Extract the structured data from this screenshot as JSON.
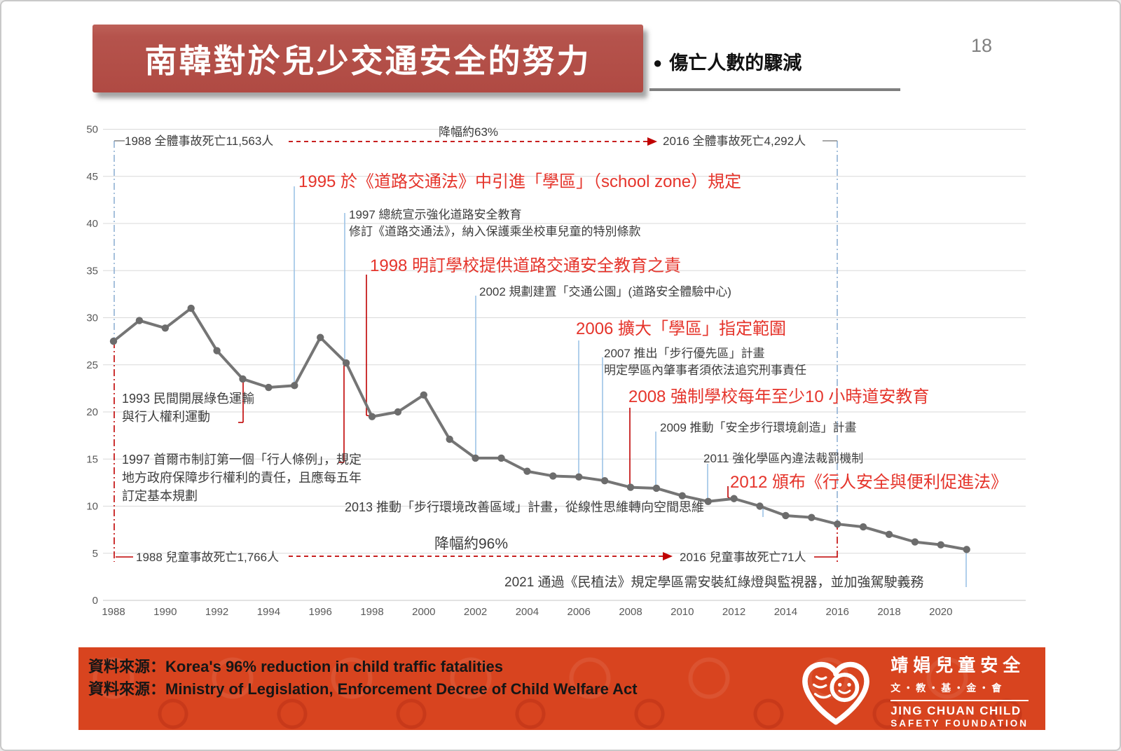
{
  "page": {
    "number": "18"
  },
  "header": {
    "title": "南韓對於兒少交通安全的努力",
    "bullet": "●",
    "subtitle": "傷亡人數的驟減"
  },
  "colors": {
    "banner_red": "#b5534c",
    "annotation_red": "#e5342b",
    "dash_red": "#c00000",
    "leader_blue": "#9dc3e6",
    "dashdot_bluegray": "#8fb0d4",
    "line_gray": "#757575",
    "grid_gray": "#d9d9d9",
    "footer_red": "#d8441f"
  },
  "chart_data": {
    "type": "line",
    "title": "",
    "xlabel": "",
    "ylabel": "",
    "x": [
      1988,
      1989,
      1990,
      1991,
      1992,
      1993,
      1994,
      1995,
      1996,
      1997,
      1998,
      1999,
      2000,
      2001,
      2002,
      2003,
      2004,
      2005,
      2006,
      2007,
      2008,
      2009,
      2010,
      2011,
      2012,
      2013,
      2014,
      2015,
      2016,
      2017,
      2018,
      2019,
      2020,
      2021
    ],
    "values": [
      27.5,
      29.7,
      28.9,
      31.0,
      26.5,
      23.5,
      22.6,
      22.8,
      27.9,
      25.2,
      19.5,
      20.0,
      21.8,
      17.1,
      15.1,
      15.1,
      13.7,
      13.2,
      13.1,
      12.7,
      12.0,
      11.9,
      11.1,
      10.5,
      10.8,
      10.0,
      9.0,
      8.8,
      8.1,
      7.8,
      7.0,
      6.2,
      5.9,
      5.4
    ],
    "ylim": [
      0,
      50
    ],
    "ytick_step": 5,
    "xticks": [
      1988,
      1990,
      1992,
      1994,
      1996,
      1998,
      2000,
      2002,
      2004,
      2006,
      2008,
      2010,
      2012,
      2014,
      2016,
      2018,
      2020
    ],
    "grid": true,
    "legend": "none",
    "annotations": {
      "total_1988": {
        "text": "1988 全體事故死亡11,563人",
        "color": "black"
      },
      "drop_total": {
        "text": "降幅約63%",
        "color": "black"
      },
      "total_2016": {
        "text": "2016 全體事故死亡4,292人",
        "color": "black"
      },
      "y1995": {
        "text": "1995 於《道路交通法》中引進「學區」（school zone）規定",
        "color": "red"
      },
      "y1997_a": {
        "text": "1997 總統宣示強化道路安全教育",
        "color": "black"
      },
      "y1997_b": {
        "text": "修訂《道路交通法》，納入保護乘坐校車兒童的特別條款",
        "color": "black"
      },
      "y1998": {
        "text": "1998 明訂學校提供道路交通安全教育之責",
        "color": "red"
      },
      "y2002": {
        "text": "2002 規劃建置「交通公園」(道路安全體驗中心)",
        "color": "black"
      },
      "y2006": {
        "text": "2006 擴大「學區」指定範圍",
        "color": "red"
      },
      "y2007_a": {
        "text": "2007 推出「步行優先區」計畫",
        "color": "black"
      },
      "y2007_b": {
        "text": "明定學區內肇事者須依法追究刑事責任",
        "color": "black"
      },
      "y2008": {
        "text": "2008 強制學校每年至少10 小時道安教育",
        "color": "red"
      },
      "y2009": {
        "text": "2009 推動「安全步行環境創造」計畫",
        "color": "black"
      },
      "y2011": {
        "text": "2011 強化學區內違法裁罰機制",
        "color": "black"
      },
      "y2012": {
        "text": "2012 頒布《行人安全與便利促進法》",
        "color": "red"
      },
      "y1993": {
        "text": "1993 民間開展綠色運輸與行人權利運動",
        "color": "black"
      },
      "y1997_left": {
        "text": "1997 首爾市制訂第一個「行人條例」，規定地方政府保障步行權利的責任，且應每五年訂定基本規劃",
        "color": "black"
      },
      "y2013": {
        "text": "2013 推動「步行環境改善區域」計畫，從線性思維轉向空間思維",
        "color": "black"
      },
      "child_1988": {
        "text": "1988 兒童事故死亡1,766人",
        "color": "black"
      },
      "drop_child": {
        "text": "降幅約96%",
        "color": "black"
      },
      "child_2016": {
        "text": "2016 兒童事故死亡71人",
        "color": "black"
      },
      "y2021": {
        "text": "2021 通過《民植法》規定學區需安裝紅綠燈與監視器，並加強駕駛義務",
        "color": "black"
      }
    }
  },
  "footer": {
    "sources": [
      "資料來源：Korea's 96% reduction in child traffic fatalities",
      "資料來源：Ministry of Legislation, Enforcement Decree of Child Welfare Act"
    ],
    "logo": {
      "name_cn": "靖娟兒童安全",
      "subtitle_cn": "文・教・基・金・會",
      "name_en_1": "JING CHUAN CHILD",
      "name_en_2": "SAFETY FOUNDATION"
    }
  }
}
